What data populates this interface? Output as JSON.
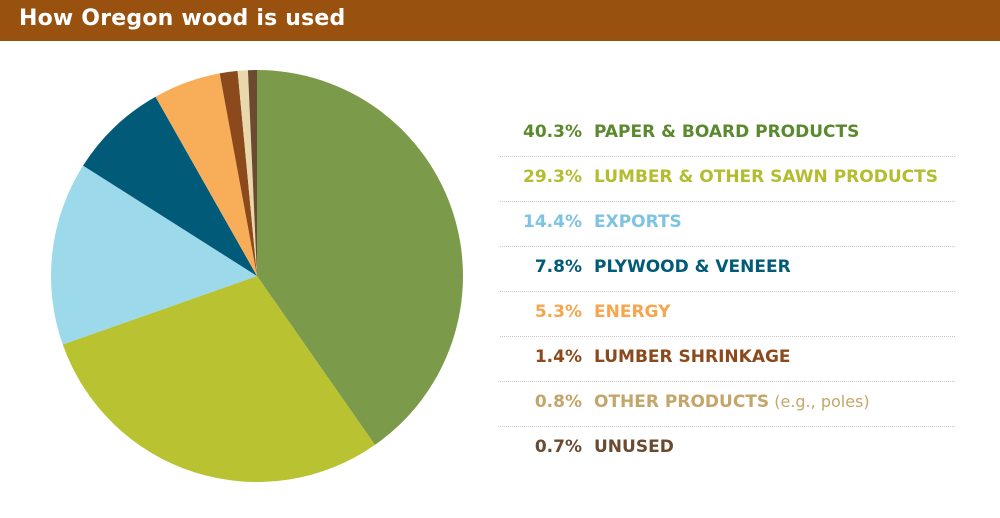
{
  "title": "How Oregon wood is used",
  "colors": {
    "title_bar": "#98510f",
    "title_text": "#ffffff"
  },
  "chart_data": {
    "type": "pie",
    "start": "12 o'clock, clockwise",
    "slices": [
      {
        "pct_label": "40.3%",
        "value": 40.3,
        "label": "PAPER & BOARD PRODUCTS",
        "note": "",
        "color": "#7b9b4a",
        "text_color": "#5b8a2e"
      },
      {
        "pct_label": "29.3%",
        "value": 29.3,
        "label": "LUMBER & OTHER SAWN PRODUCTS",
        "note": "",
        "color": "#b9c231",
        "text_color": "#b3bd2f"
      },
      {
        "pct_label": "14.4%",
        "value": 14.4,
        "label": "EXPORTS",
        "note": "",
        "color": "#9cd9ea",
        "text_color": "#7ec3e1"
      },
      {
        "pct_label": "7.8%",
        "value": 7.8,
        "label": "PLYWOOD & VENEER",
        "note": "",
        "color": "#005a78",
        "text_color": "#005a78"
      },
      {
        "pct_label": "5.3%",
        "value": 5.3,
        "label": "ENERGY",
        "note": "",
        "color": "#f8ae58",
        "text_color": "#f5a64e"
      },
      {
        "pct_label": "1.4%",
        "value": 1.4,
        "label": "LUMBER SHRINKAGE",
        "note": "",
        "color": "#8c4a1c",
        "text_color": "#8c4a1c"
      },
      {
        "pct_label": "0.8%",
        "value": 0.8,
        "label": "OTHER PRODUCTS",
        "note": "(e.g., poles)",
        "color": "#e8d8ac",
        "text_color": "#c4a66a"
      },
      {
        "pct_label": "0.7%",
        "value": 0.7,
        "label": "UNUSED",
        "note": "",
        "color": "#6b4a30",
        "text_color": "#6b4a30"
      }
    ]
  }
}
